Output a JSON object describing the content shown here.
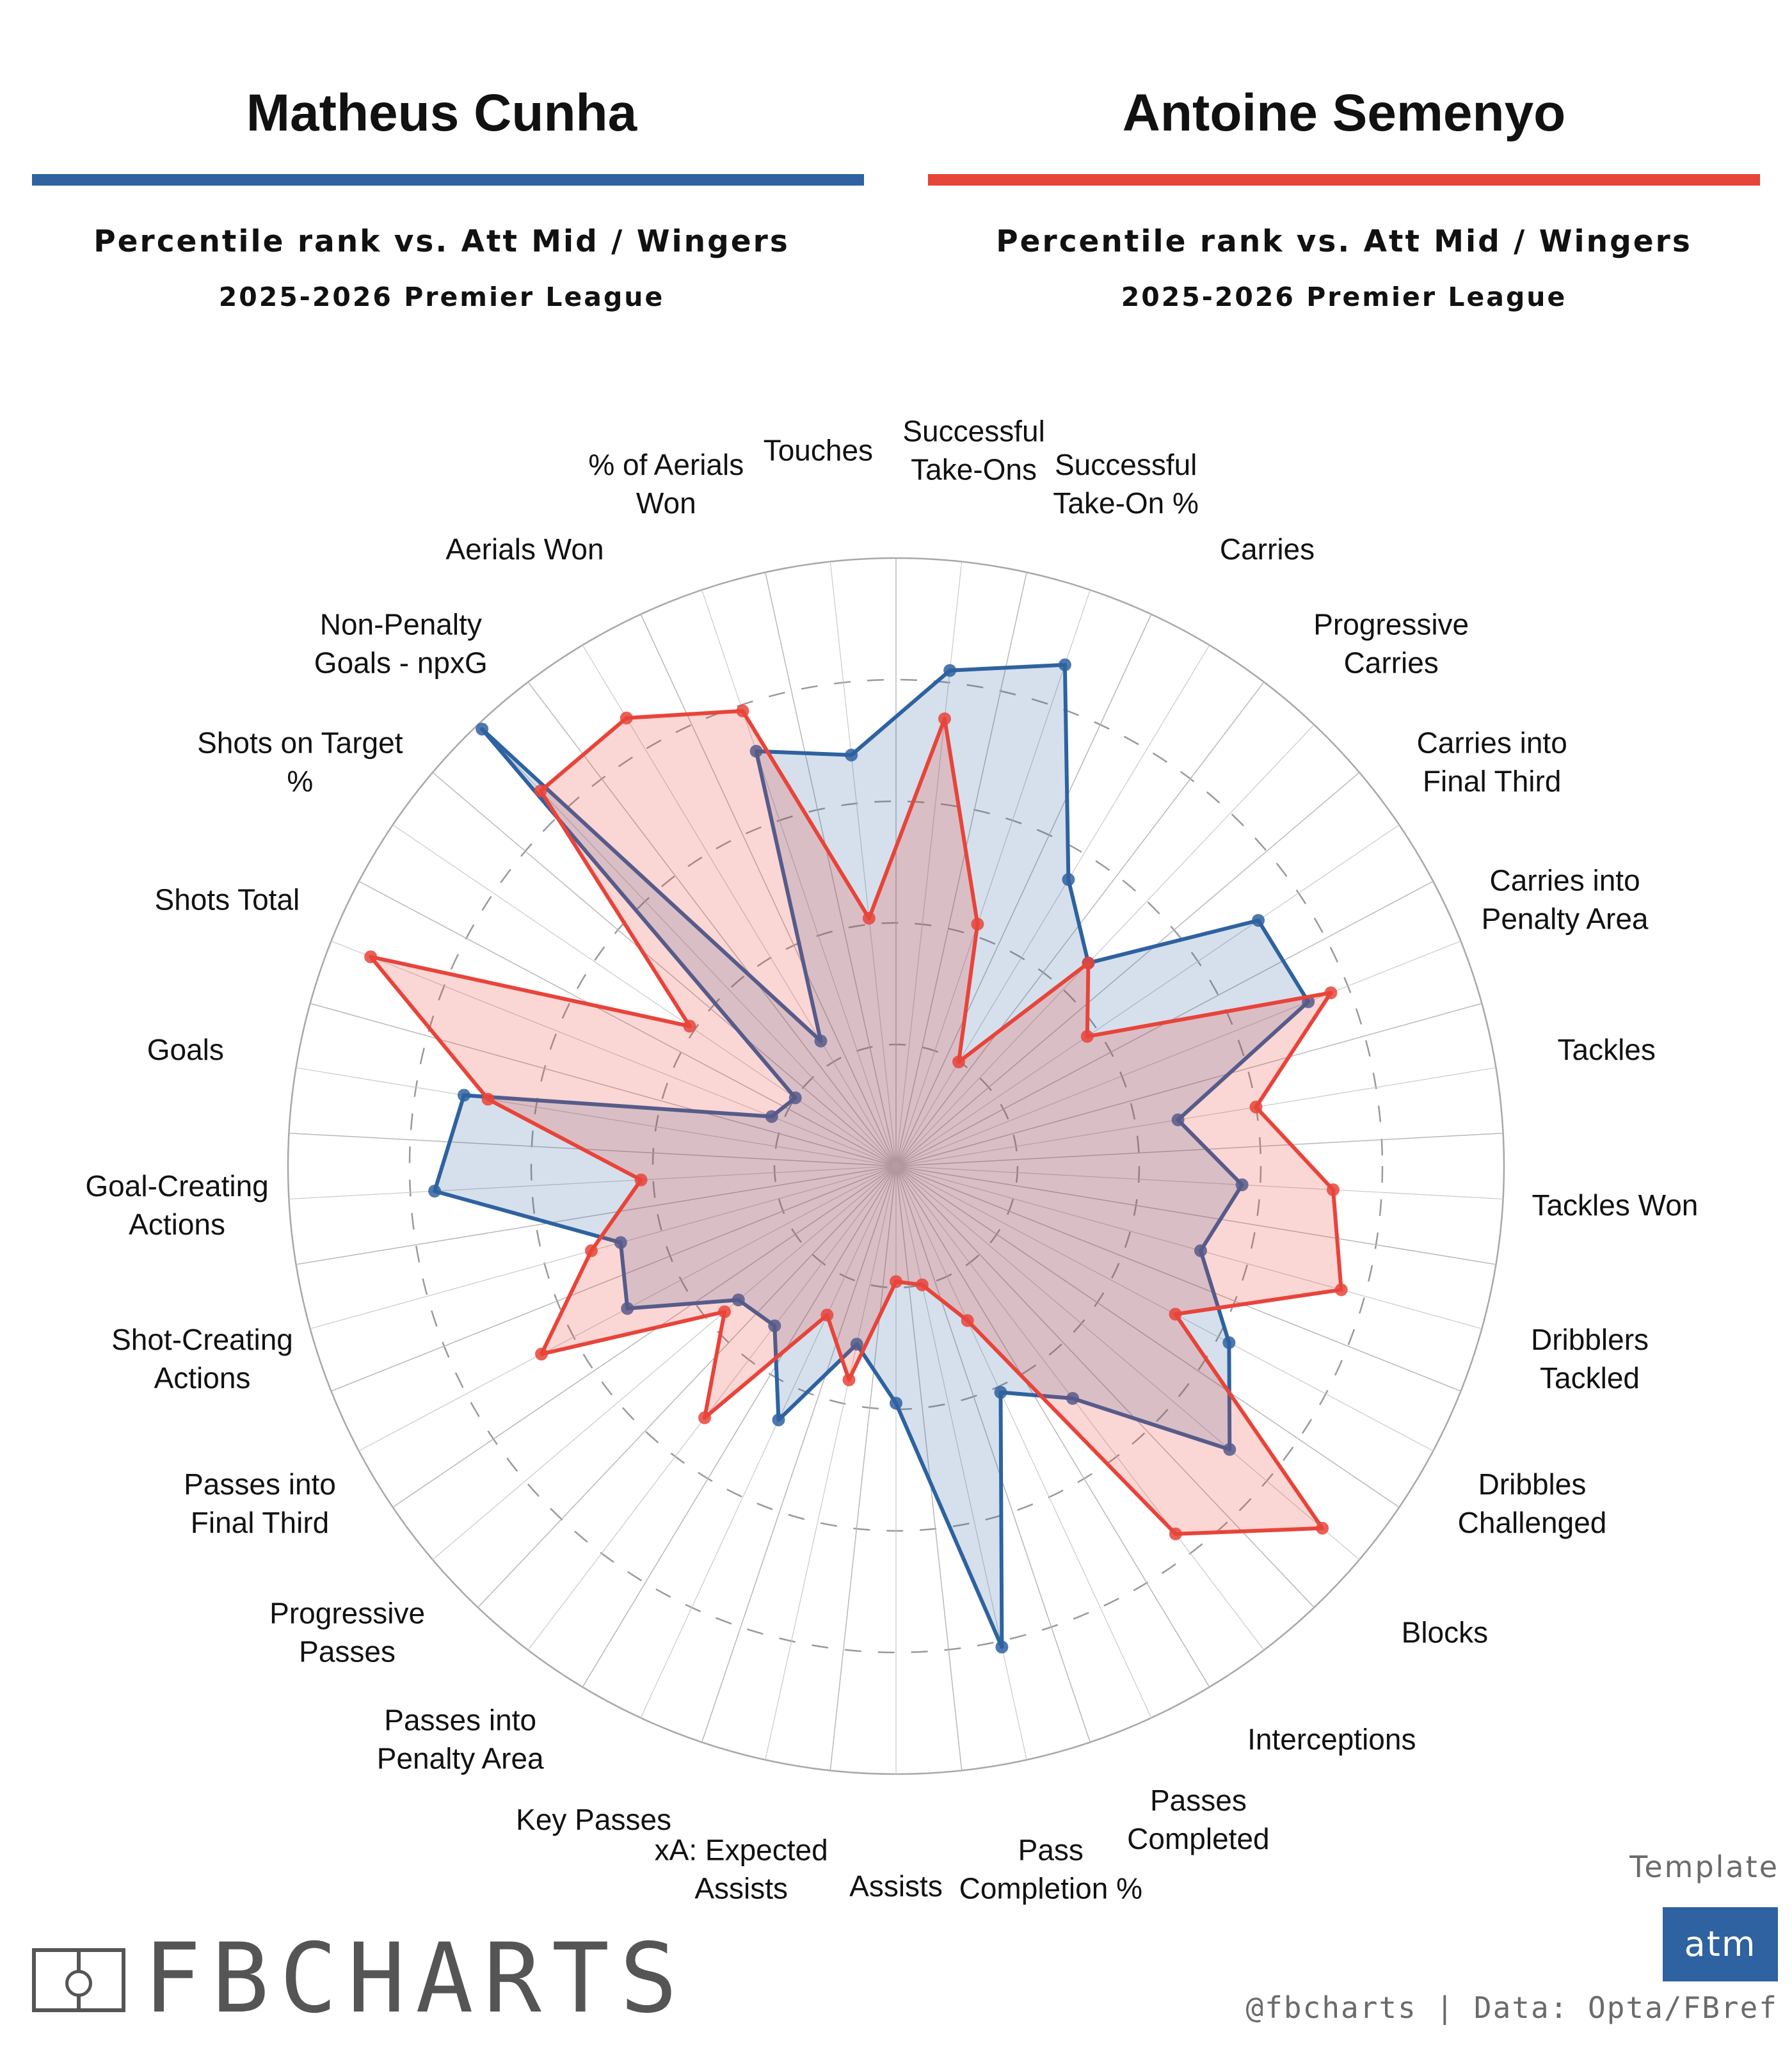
{
  "header": {
    "left": {
      "player": "Matheus Cunha",
      "subtitle": "Percentile rank vs. Att Mid / Wingers",
      "season": "2025-2026 Premier League"
    },
    "right": {
      "player": "Antoine Semenyo",
      "subtitle": "Percentile rank vs. Att Mid / Wingers",
      "season": "2025-2026 Premier League"
    }
  },
  "colors": {
    "player1": "#2e62a0",
    "player2": "#e8443a",
    "grid": "#b8b8b8"
  },
  "footer": {
    "brand": "FBCHARTS",
    "template_label": "Template",
    "template_value": "atm",
    "credit": "@fbcharts | Data: Opta/FBref"
  },
  "chart_data": {
    "type": "radar",
    "rmax": 100,
    "grid_rings": [
      20,
      40,
      60,
      80
    ],
    "categories": [
      "Touches",
      "Successful\nTake-Ons",
      "Successful\nTake-On %",
      "Carries",
      "Progressive\nCarries",
      "Carries into\nFinal Third",
      "Carries into\nPenalty Area",
      "Tackles",
      "Tackles Won",
      "Dribblers\nTackled",
      "Dribbles\nChallenged",
      "Blocks",
      "Interceptions",
      "Passes\nCompleted",
      "Pass\nCompletion %",
      "Assists",
      "xA: Expected\nAssists",
      "Key Passes",
      "Passes into\nPenalty Area",
      "Progressive\nPasses",
      "Passes into\nFinal Third",
      "Shot-Creating\nActions",
      "Goal-Creating\nActions",
      "Goals",
      "Shots Total",
      "Shots on Target\n%",
      "Non-Penalty\nGoals - npxG",
      "Aerials Won",
      "% of Aerials\nWon"
    ],
    "series": [
      {
        "name": "Matheus Cunha",
        "values": [
          68,
          82,
          87,
          55,
          46,
          72,
          73,
          47,
          57,
          52,
          62,
          72,
          48,
          41,
          81,
          39,
          30,
          46,
          33,
          34,
          50,
          47,
          76,
          72,
          22,
          20,
          99,
          24,
          72
        ]
      },
      {
        "name": "Antoine Semenyo",
        "values": [
          41,
          74,
          42,
          20,
          46,
          38,
          77,
          60,
          72,
          76,
          52,
          92,
          76,
          28,
          20,
          19,
          36,
          27,
          52,
          37,
          66,
          52,
          42,
          68,
          93,
          41,
          85,
          86,
          79
        ]
      }
    ]
  }
}
